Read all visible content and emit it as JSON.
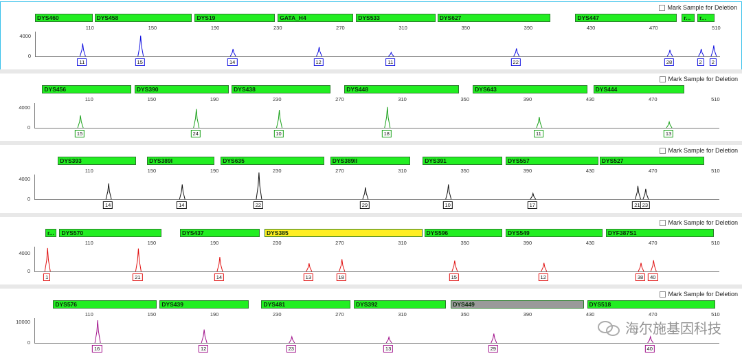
{
  "ui": {
    "mark_label": "Mark Sample for Deletion"
  },
  "x_ticks": [
    "110",
    "150",
    "190",
    "230",
    "270",
    "310",
    "350",
    "390",
    "430",
    "470",
    "510"
  ],
  "watermark": "海尔施基因科技",
  "chart_data": [
    {
      "type": "line",
      "color": "#1010e0",
      "x_range": [
        75,
        512
      ],
      "ylim": [
        0,
        5000
      ],
      "y_ticks": [
        "4000",
        "0"
      ],
      "markers": [
        {
          "label": "DYS460",
          "start": 75,
          "end": 112,
          "color": "#22ee22"
        },
        {
          "label": "DYS458",
          "start": 113,
          "end": 175,
          "color": "#22ee22"
        },
        {
          "label": "DYS19",
          "start": 177,
          "end": 228,
          "color": "#22ee22"
        },
        {
          "label": "GATA_H4",
          "start": 230,
          "end": 278,
          "color": "#22ee22"
        },
        {
          "label": "DYS533",
          "start": 280,
          "end": 331,
          "color": "#22ee22"
        },
        {
          "label": "DYS627",
          "start": 332,
          "end": 404,
          "color": "#22ee22"
        },
        {
          "label": "DYS447",
          "start": 420,
          "end": 485,
          "color": "#22ee22"
        },
        {
          "label": "r...",
          "start": 488,
          "end": 496,
          "color": "#22ee22"
        },
        {
          "label": "r...",
          "start": 498,
          "end": 509,
          "color": "#22ee22"
        }
      ],
      "peaks": [
        {
          "x": 105,
          "h": 2600,
          "allele": "11"
        },
        {
          "x": 142,
          "h": 4200,
          "allele": "15"
        },
        {
          "x": 201,
          "h": 1500,
          "allele": "14"
        },
        {
          "x": 256,
          "h": 1900,
          "allele": "12"
        },
        {
          "x": 302,
          "h": 800,
          "allele": "11"
        },
        {
          "x": 382,
          "h": 1600,
          "allele": "22"
        },
        {
          "x": 480,
          "h": 1300,
          "allele": "28"
        },
        {
          "x": 500,
          "h": 1500,
          "allele": "2"
        },
        {
          "x": 508,
          "h": 2200,
          "allele": "2"
        }
      ]
    },
    {
      "type": "line",
      "color": "#18a018",
      "x_range": [
        75,
        512
      ],
      "ylim": [
        0,
        5000
      ],
      "y_ticks": [
        "4000",
        "0"
      ],
      "markers": [
        {
          "label": "DYS456",
          "start": 80,
          "end": 137,
          "color": "#22ee22"
        },
        {
          "label": "DYS390",
          "start": 139,
          "end": 199,
          "color": "#22ee22"
        },
        {
          "label": "DYS438",
          "start": 201,
          "end": 264,
          "color": "#22ee22"
        },
        {
          "label": "DYS448",
          "start": 273,
          "end": 346,
          "color": "#22ee22"
        },
        {
          "label": "DYS643",
          "start": 355,
          "end": 428,
          "color": "#22ee22"
        },
        {
          "label": "DYS444",
          "start": 432,
          "end": 490,
          "color": "#22ee22"
        }
      ],
      "peaks": [
        {
          "x": 104,
          "h": 2500,
          "allele": "15"
        },
        {
          "x": 178,
          "h": 3800,
          "allele": "24"
        },
        {
          "x": 231,
          "h": 3600,
          "allele": "10"
        },
        {
          "x": 300,
          "h": 4200,
          "allele": "18"
        },
        {
          "x": 397,
          "h": 2200,
          "allele": "11"
        },
        {
          "x": 480,
          "h": 1200,
          "allele": "13"
        }
      ]
    },
    {
      "type": "line",
      "color": "#111111",
      "x_range": [
        75,
        512
      ],
      "ylim": [
        0,
        5000
      ],
      "y_ticks": [
        "4000",
        "0"
      ],
      "markers": [
        {
          "label": "DYS393",
          "start": 90,
          "end": 140,
          "color": "#22ee22"
        },
        {
          "label": "DYS389I",
          "start": 147,
          "end": 190,
          "color": "#22ee22"
        },
        {
          "label": "DYS635",
          "start": 194,
          "end": 260,
          "color": "#22ee22"
        },
        {
          "label": "DYS389II",
          "start": 264,
          "end": 315,
          "color": "#22ee22"
        },
        {
          "label": "DYS391",
          "start": 323,
          "end": 374,
          "color": "#22ee22"
        },
        {
          "label": "DYS557",
          "start": 376,
          "end": 435,
          "color": "#22ee22"
        },
        {
          "label": "DYS527",
          "start": 436,
          "end": 503,
          "color": "#22ee22"
        }
      ],
      "peaks": [
        {
          "x": 122,
          "h": 3200,
          "allele": "14"
        },
        {
          "x": 169,
          "h": 3000,
          "allele": "14"
        },
        {
          "x": 218,
          "h": 5500,
          "allele": "22"
        },
        {
          "x": 286,
          "h": 2400,
          "allele": "29"
        },
        {
          "x": 339,
          "h": 3000,
          "allele": "10"
        },
        {
          "x": 393,
          "h": 1200,
          "allele": "17"
        },
        {
          "x": 460,
          "h": 2700,
          "allele": "21"
        },
        {
          "x": 465,
          "h": 2100,
          "allele": "23"
        }
      ]
    },
    {
      "type": "line",
      "color": "#e01010",
      "x_range": [
        75,
        512
      ],
      "ylim": [
        0,
        5500
      ],
      "y_ticks": [
        "4000",
        "0"
      ],
      "markers": [
        {
          "label": "r...",
          "start": 82,
          "end": 89,
          "color": "#22ee22"
        },
        {
          "label": "DYS570",
          "start": 91,
          "end": 156,
          "color": "#22ee22"
        },
        {
          "label": "DYS437",
          "start": 168,
          "end": 219,
          "color": "#22ee22"
        },
        {
          "label": "DYS385",
          "start": 222,
          "end": 323,
          "color": "#ffee22"
        },
        {
          "label": "DYS596",
          "start": 324,
          "end": 374,
          "color": "#22ee22"
        },
        {
          "label": "DYS549",
          "start": 376,
          "end": 438,
          "color": "#22ee22"
        },
        {
          "label": "DYF387S1",
          "start": 440,
          "end": 509,
          "color": "#22ee22"
        }
      ],
      "peaks": [
        {
          "x": 83,
          "h": 5200,
          "allele": "1"
        },
        {
          "x": 141,
          "h": 5100,
          "allele": "21"
        },
        {
          "x": 193,
          "h": 3200,
          "allele": "14"
        },
        {
          "x": 250,
          "h": 1800,
          "allele": "13"
        },
        {
          "x": 271,
          "h": 2700,
          "allele": "18"
        },
        {
          "x": 343,
          "h": 2400,
          "allele": "15"
        },
        {
          "x": 400,
          "h": 1900,
          "allele": "12"
        },
        {
          "x": 462,
          "h": 1900,
          "allele": "38"
        },
        {
          "x": 470,
          "h": 2500,
          "allele": "40"
        }
      ]
    },
    {
      "type": "line",
      "color": "#a0108a",
      "x_range": [
        75,
        512
      ],
      "ylim": [
        0,
        12000
      ],
      "y_ticks": [
        "10000",
        "0"
      ],
      "markers": [
        {
          "label": "DYS576",
          "start": 87,
          "end": 153,
          "color": "#22ee22"
        },
        {
          "label": "DYS439",
          "start": 155,
          "end": 212,
          "color": "#22ee22"
        },
        {
          "label": "DYS481",
          "start": 220,
          "end": 277,
          "color": "#22ee22"
        },
        {
          "label": "DYS392",
          "start": 279,
          "end": 338,
          "color": "#22ee22"
        },
        {
          "label": "DYS449",
          "start": 341,
          "end": 426,
          "color": "#9a9a9a"
        },
        {
          "label": "DYS518",
          "start": 428,
          "end": 510,
          "color": "#22ee22"
        }
      ],
      "peaks": [
        {
          "x": 115,
          "h": 11000,
          "allele": "16"
        },
        {
          "x": 183,
          "h": 6500,
          "allele": "12"
        },
        {
          "x": 239,
          "h": 3000,
          "allele": "23"
        },
        {
          "x": 301,
          "h": 2800,
          "allele": "13"
        },
        {
          "x": 368,
          "h": 4500,
          "allele": "29"
        },
        {
          "x": 468,
          "h": 3000,
          "allele": "40"
        }
      ]
    }
  ]
}
